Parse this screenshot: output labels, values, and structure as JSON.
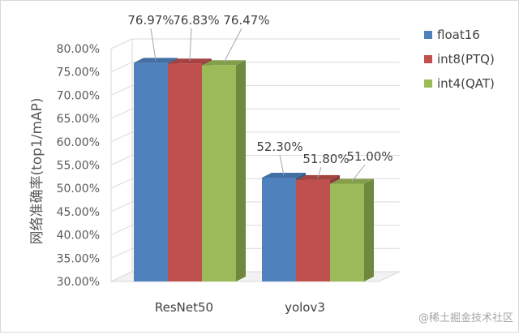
{
  "chart_data": {
    "type": "bar",
    "style": "3d-clustered-column",
    "categories": [
      "ResNet50",
      "yolov3"
    ],
    "series": [
      {
        "name": "float16",
        "values": [
          76.97,
          52.3
        ],
        "color": "#4F81BD"
      },
      {
        "name": "int8(PTQ)",
        "values": [
          76.83,
          51.8
        ],
        "color": "#C0504D"
      },
      {
        "name": "int4(QAT)",
        "values": [
          76.47,
          51.0
        ],
        "color": "#9BBB59"
      }
    ],
    "data_labels": [
      [
        "76.97%",
        "52.30%"
      ],
      [
        "76.83%",
        "51.80%"
      ],
      [
        "76.47%",
        "51.00%"
      ]
    ],
    "title": "",
    "xlabel": "",
    "ylabel": "网络准确率(top1/mAP)",
    "ylim": [
      30,
      80
    ],
    "yticks": [
      "30.00%",
      "35.00%",
      "40.00%",
      "45.00%",
      "50.00%",
      "55.00%",
      "60.00%",
      "65.00%",
      "70.00%",
      "75.00%",
      "80.00%"
    ],
    "grid": true,
    "legend_position": "right"
  },
  "watermark": "@稀土掘金技术社区"
}
